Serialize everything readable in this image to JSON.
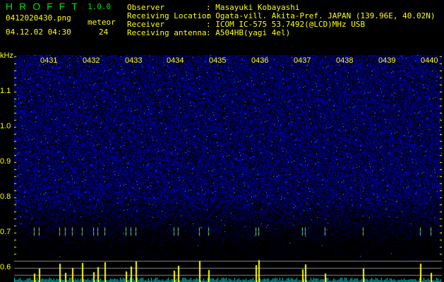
{
  "header": {
    "app_title": "HROFFT",
    "app_version": "1.0.0",
    "filename": "0412020430.png",
    "datetime": "04.12.02 04:30",
    "meteor_label": "meteor",
    "meteor_count": "24"
  },
  "info": {
    "observer_label": "Observer",
    "observer": ": Masayuki Kobayashi",
    "location_label": "Receiving Location",
    "location": ": Ogata-vill. Akita-Pref. JAPAN (139.96E, 40.02N)",
    "receiver_label": "Receiver",
    "receiver": ": ICOM IC-575 53.7492(@LCD)MHz USB",
    "antenna_label": "Receiving antenna",
    "antenna": ": A504HB(yagi 4el)"
  },
  "axis": {
    "unit": "kHz",
    "freq_labels": [
      "1.1",
      "1.0",
      "0.9",
      "0.8",
      "0.7",
      "0.6"
    ],
    "time_labels": [
      "0431",
      "0432",
      "0433",
      "0434",
      "0435",
      "0436",
      "0437",
      "0438",
      "0439",
      "0440"
    ]
  },
  "colors": {
    "text": "#ffff00",
    "title": "#00e000",
    "noise": "#1010c0",
    "histogram_low": "#00e0e0",
    "histogram_high": "#ffff00"
  }
}
